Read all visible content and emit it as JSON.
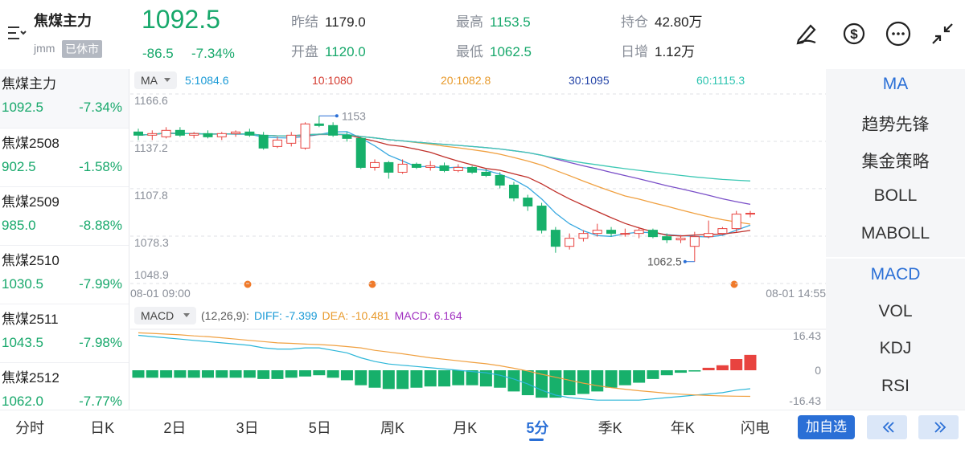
{
  "header": {
    "name": "焦煤主力",
    "code": "jmm",
    "status": "已休市",
    "price": "1092.5",
    "change": "-86.5",
    "change_pct": "-7.34%",
    "stats": [
      {
        "label": "昨结",
        "value": "1179.0"
      },
      {
        "label": "开盘",
        "value": "1120.0"
      },
      {
        "label": "最高",
        "value": "1153.5"
      },
      {
        "label": "最低",
        "value": "1062.5"
      },
      {
        "label": "持仓",
        "value": "42.80万"
      },
      {
        "label": "日增",
        "value": "1.12万"
      }
    ]
  },
  "contracts": [
    {
      "name": "焦煤主力",
      "price": "1092.5",
      "pct": "-7.34%"
    },
    {
      "name": "焦煤2508",
      "price": "902.5",
      "pct": "-1.58%"
    },
    {
      "name": "焦煤2509",
      "price": "985.0",
      "pct": "-8.88%"
    },
    {
      "name": "焦煤2510",
      "price": "1030.5",
      "pct": "-7.99%"
    },
    {
      "name": "焦煤2511",
      "price": "1043.5",
      "pct": "-7.98%"
    },
    {
      "name": "焦煤2512",
      "price": "1062.0",
      "pct": "-7.77%"
    }
  ],
  "kline": {
    "indicator": "MA",
    "ma": [
      {
        "period": 5,
        "label": "5:1084.6"
      },
      {
        "period": 10,
        "label": "10:1080"
      },
      {
        "period": 20,
        "label": "20:1082.8"
      },
      {
        "period": 30,
        "label": "30:1095"
      },
      {
        "period": 60,
        "label": "60:1115.3"
      }
    ],
    "ylim": [
      1048.9,
      1166.6
    ],
    "yticks": [
      1166.6,
      1137.2,
      1107.8,
      1078.3,
      1048.9
    ],
    "time_start": "08-01 09:00",
    "time_end": "08-01 14:55",
    "high_label": "1153",
    "low_label": "1062.5",
    "candles": [
      [
        1143,
        1145,
        1138,
        1141
      ],
      [
        1141,
        1144,
        1138,
        1142
      ],
      [
        1140,
        1146,
        1139,
        1144
      ],
      [
        1144,
        1146,
        1140,
        1141
      ],
      [
        1141,
        1143,
        1139,
        1142
      ],
      [
        1142,
        1144,
        1139,
        1140
      ],
      [
        1140,
        1143,
        1138,
        1142
      ],
      [
        1142,
        1144,
        1140,
        1143
      ],
      [
        1143,
        1145,
        1140,
        1141
      ],
      [
        1141,
        1143,
        1132,
        1133
      ],
      [
        1134,
        1140,
        1133,
        1138
      ],
      [
        1136,
        1143,
        1134,
        1141
      ],
      [
        1133,
        1149,
        1132,
        1148
      ],
      [
        1148,
        1153,
        1146,
        1147
      ],
      [
        1147,
        1149,
        1140,
        1141
      ],
      [
        1141,
        1143,
        1137,
        1139
      ],
      [
        1139,
        1140,
        1120,
        1121
      ],
      [
        1121,
        1126,
        1119,
        1124
      ],
      [
        1124,
        1125,
        1114,
        1118
      ],
      [
        1118,
        1126,
        1117,
        1123
      ],
      [
        1123,
        1124,
        1120,
        1121
      ],
      [
        1121,
        1125,
        1119,
        1122
      ],
      [
        1122,
        1124,
        1118,
        1119
      ],
      [
        1119,
        1123,
        1118,
        1121
      ],
      [
        1121,
        1122,
        1117,
        1118
      ],
      [
        1118,
        1120,
        1115,
        1116
      ],
      [
        1116,
        1118,
        1108,
        1110
      ],
      [
        1110,
        1112,
        1100,
        1102
      ],
      [
        1102,
        1104,
        1094,
        1097
      ],
      [
        1097,
        1099,
        1080,
        1082
      ],
      [
        1082,
        1084,
        1068,
        1072
      ],
      [
        1072,
        1080,
        1070,
        1077
      ],
      [
        1077,
        1082,
        1075,
        1080
      ],
      [
        1080,
        1086,
        1078,
        1082
      ],
      [
        1082,
        1084,
        1078,
        1080
      ],
      [
        1080,
        1083,
        1078,
        1080
      ],
      [
        1080,
        1084,
        1077,
        1082
      ],
      [
        1082,
        1083,
        1077,
        1078
      ],
      [
        1078,
        1080,
        1074,
        1076
      ],
      [
        1076,
        1079,
        1074,
        1077
      ],
      [
        1072,
        1081,
        1062.5,
        1078
      ],
      [
        1078,
        1088,
        1077,
        1080
      ],
      [
        1080,
        1084,
        1079,
        1083
      ],
      [
        1083,
        1094,
        1081,
        1092
      ],
      [
        1092,
        1094,
        1090,
        1092.5
      ]
    ]
  },
  "macd": {
    "indicator": "MACD",
    "params": "(12,26,9):",
    "diff_label": "DIFF: -7.399",
    "dea_label": "DEA: -10.481",
    "macd_label": "MACD: 6.164",
    "ylim": [
      -16.43,
      16.43
    ],
    "yticks": [
      16.43,
      0,
      -16.43
    ],
    "hist": [
      -3,
      -3,
      -3,
      -3,
      -3,
      -3,
      -3,
      -3,
      -3,
      -3.5,
      -3.5,
      -3,
      -2.5,
      -2,
      -3,
      -4,
      -6,
      -7,
      -7.5,
      -7.5,
      -7,
      -6.5,
      -6.5,
      -6,
      -6,
      -6.5,
      -7,
      -8.5,
      -10,
      -11,
      -11,
      -10,
      -9.5,
      -8.5,
      -7,
      -6,
      -5,
      -3.5,
      -2,
      -1,
      -0.5,
      1,
      2,
      4.5,
      6.164
    ],
    "diff": [
      14,
      13.5,
      13,
      12.5,
      12,
      11.5,
      11,
      10.5,
      10,
      9,
      8.5,
      8.5,
      9,
      9,
      8,
      7,
      5,
      3.5,
      2.5,
      2,
      1.5,
      1,
      0.5,
      0,
      -0.5,
      -1,
      -2,
      -3.5,
      -5.5,
      -8,
      -10,
      -11,
      -11.5,
      -12,
      -12,
      -12,
      -12,
      -11.5,
      -11,
      -10.5,
      -10,
      -9.5,
      -9,
      -8,
      -7.399
    ],
    "dea": [
      15,
      14.8,
      14.5,
      14.2,
      13.8,
      13.5,
      13,
      12.5,
      12,
      11.5,
      11,
      10.8,
      10.5,
      10.3,
      10,
      9.5,
      9,
      8,
      7.3,
      6.6,
      5.8,
      5,
      4.4,
      3.8,
      3.2,
      2.6,
      1.8,
      0.8,
      -0.3,
      -1.6,
      -2.8,
      -4,
      -5.2,
      -6.2,
      -7,
      -7.6,
      -8.2,
      -8.7,
      -9.2,
      -9.6,
      -9.9,
      -10.1,
      -10.3,
      -10.4,
      -10.481
    ]
  },
  "right_tabs": [
    "MA",
    "趋势先锋",
    "集金策略",
    "BOLL",
    "MABOLL",
    "MACD",
    "VOL",
    "KDJ",
    "RSI"
  ],
  "bottom_tabs": [
    "分时",
    "日K",
    "2日",
    "3日",
    "5日",
    "周K",
    "月K",
    "5分",
    "季K",
    "年K",
    "闪电"
  ],
  "button": "加自选"
}
